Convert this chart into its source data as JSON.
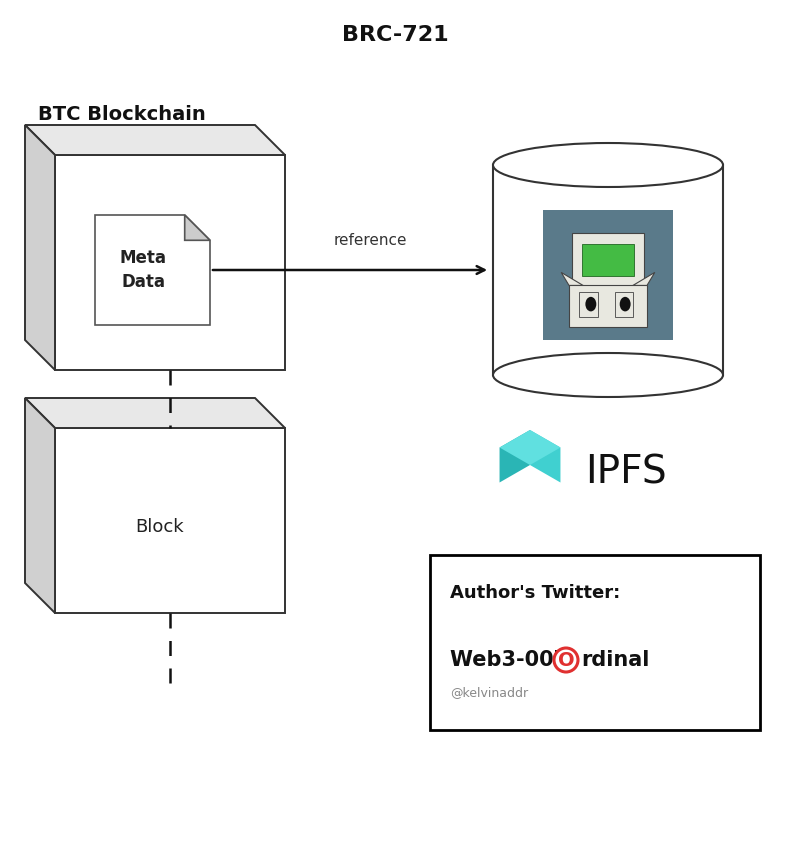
{
  "title": "BRC-721",
  "btc_label": "BTC Blockchain",
  "reference_label": "reference",
  "ipfs_label": "IPFS",
  "metadata_label": "Meta\nData",
  "block_label": "Block",
  "twitter_title": "Author's Twitter:",
  "twitter_handle": "@kelvinaddr",
  "bg_color": "#ffffff",
  "cube_front_color": "#ffffff",
  "cube_top_color": "#e8e8e8",
  "cube_side_color": "#d0d0d0",
  "cube_edge_color": "#333333",
  "doc_bg_color": "#ffffff",
  "doc_edge_color": "#555555",
  "doc_fold_color": "#cccccc",
  "arrow_color": "#111111",
  "dashed_color": "#111111",
  "cyl_face_color": "#ffffff",
  "cyl_edge_color": "#333333",
  "nft_bg_color": "#5a7a8a",
  "twitter_box_edge": "#000000",
  "ordinal_circle_color": "#e03030",
  "title_fontsize": 16,
  "btc_label_fontsize": 14,
  "block_label_fontsize": 13,
  "meta_label_fontsize": 12,
  "reference_fontsize": 11,
  "ipfs_fontsize": 28,
  "twitter_title_fontsize": 13,
  "twitter_name_fontsize": 15,
  "twitter_handle_fontsize": 9,
  "figw": 7.91,
  "figh": 8.68,
  "dpi": 100
}
